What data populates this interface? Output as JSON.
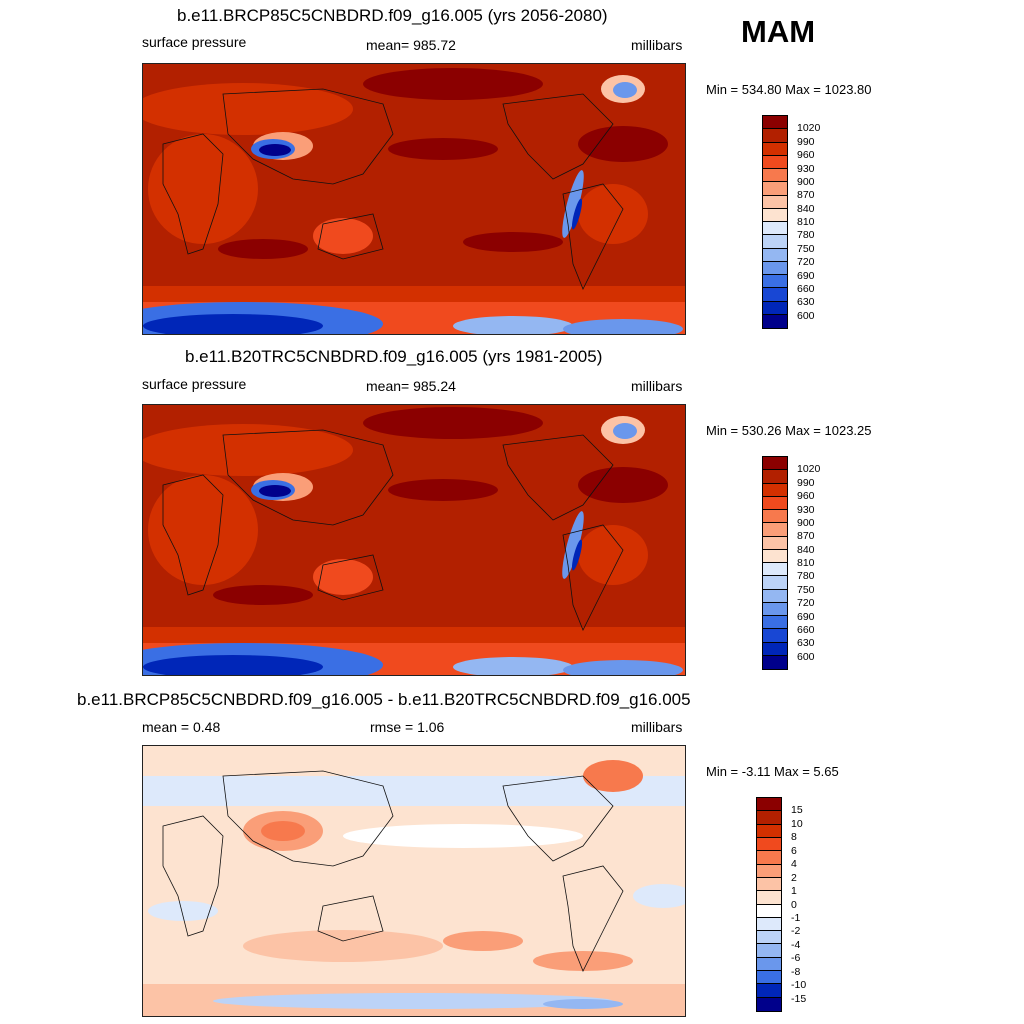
{
  "season": "MAM",
  "chart_data": [
    {
      "type": "heatmap",
      "title": "b.e11.BRCP85C5CNBDRD.f09_g16.005 (yrs 2056-2080)",
      "left_label": "surface pressure",
      "center_label": "mean= 985.72",
      "units": "millibars",
      "minmax": "Min = 534.80 Max = 1023.80",
      "colorbar": {
        "ticks": [
          "1020",
          "990",
          "960",
          "930",
          "900",
          "870",
          "840",
          "810",
          "780",
          "750",
          "720",
          "690",
          "660",
          "630",
          "600"
        ],
        "colors": [
          "#8b0000",
          "#b22000",
          "#d33000",
          "#f04a1e",
          "#f7794d",
          "#fa9e78",
          "#fcc3a6",
          "#fde3d0",
          "#dde9fb",
          "#bcd3f7",
          "#94b7f2",
          "#6a97ec",
          "#3a6fe4",
          "#1847d4",
          "#0026b8",
          "#00008b"
        ]
      }
    },
    {
      "type": "heatmap",
      "title": "b.e11.B20TRC5CNBDRD.f09_g16.005 (yrs 1981-2005)",
      "left_label": "surface pressure",
      "center_label": "mean= 985.24",
      "units": "millibars",
      "minmax": "Min = 530.26 Max = 1023.25",
      "colorbar": {
        "ticks": [
          "1020",
          "990",
          "960",
          "930",
          "900",
          "870",
          "840",
          "810",
          "780",
          "750",
          "720",
          "690",
          "660",
          "630",
          "600"
        ],
        "colors": [
          "#8b0000",
          "#b22000",
          "#d33000",
          "#f04a1e",
          "#f7794d",
          "#fa9e78",
          "#fcc3a6",
          "#fde3d0",
          "#dde9fb",
          "#bcd3f7",
          "#94b7f2",
          "#6a97ec",
          "#3a6fe4",
          "#1847d4",
          "#0026b8",
          "#00008b"
        ]
      }
    },
    {
      "type": "heatmap",
      "title": "b.e11.BRCP85C5CNBDRD.f09_g16.005 - b.e11.B20TRC5CNBDRD.f09_g16.005",
      "left_label": "mean =   0.48",
      "center_label": "rmse =   1.06",
      "units": "millibars",
      "minmax": "Min =  -3.11 Max =   5.65",
      "colorbar": {
        "ticks": [
          "15",
          "10",
          "8",
          "6",
          "4",
          "2",
          "1",
          "0",
          "-1",
          "-2",
          "-4",
          "-6",
          "-8",
          "-10",
          "-15"
        ],
        "colors": [
          "#8b0000",
          "#b22000",
          "#d33000",
          "#f04a1e",
          "#f7794d",
          "#fa9e78",
          "#fcc3a6",
          "#fde3d0",
          "#ffffff",
          "#dde9fb",
          "#bcd3f7",
          "#94b7f2",
          "#6a97ec",
          "#3a6fe4",
          "#0026b8",
          "#00008b"
        ]
      }
    }
  ]
}
